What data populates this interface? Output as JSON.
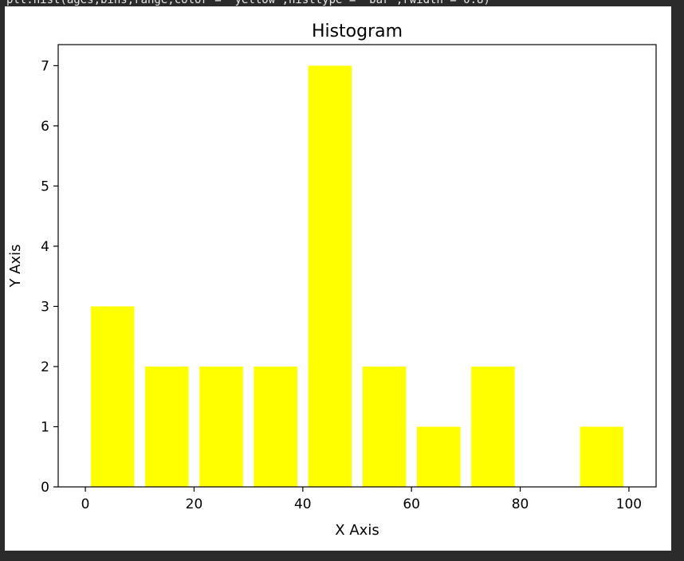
{
  "code": {
    "text": "plt.hist(ages,bins,range,color = 'yellow',histtype = 'bar',rwidth = 0.8)"
  },
  "chart_data": {
    "type": "bar",
    "title": "Histogram",
    "xlabel": "X Axis",
    "ylabel": "Y Axis",
    "bin_edges": [
      0,
      10,
      20,
      30,
      40,
      50,
      60,
      70,
      80,
      90,
      100
    ],
    "values": [
      3,
      2,
      2,
      2,
      7,
      2,
      1,
      2,
      0,
      1
    ],
    "bar_width_fraction": 0.8,
    "bar_color": "#ffff00",
    "xlim": [
      -5,
      105
    ],
    "ylim": [
      0,
      7.35
    ],
    "xticks": [
      0,
      20,
      40,
      60,
      80,
      100
    ],
    "yticks": [
      0,
      1,
      2,
      3,
      4,
      5,
      6,
      7
    ],
    "grid": false,
    "legend": "none"
  }
}
